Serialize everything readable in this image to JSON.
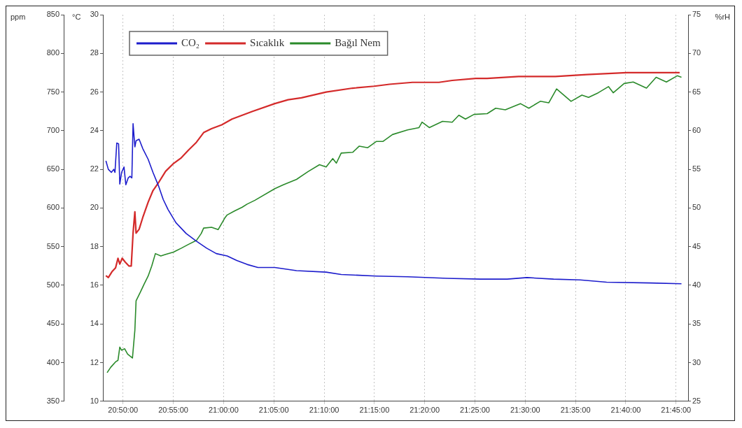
{
  "chart_data": {
    "type": "line",
    "ylabel": "ppm",
    "y2label": "°C",
    "y3label": "%rH",
    "xlim": [
      20.8,
      21.77
    ],
    "xticks": [
      {
        "value": 20.8333,
        "label": "20:50:00"
      },
      {
        "value": 20.9167,
        "label": "20:55:00"
      },
      {
        "value": 21,
        "label": "21:00:00"
      },
      {
        "value": 21.0833,
        "label": "21:05:00"
      },
      {
        "value": 21.1667,
        "label": "21:10:00"
      },
      {
        "value": 21.25,
        "label": "21:15:00"
      },
      {
        "value": 21.3333,
        "label": "21:20:00"
      },
      {
        "value": 21.4167,
        "label": "21:25:00"
      },
      {
        "value": 21.5,
        "label": "21:30:00"
      },
      {
        "value": 21.5833,
        "label": "21:35:00"
      },
      {
        "value": 21.6667,
        "label": "21:40:00"
      },
      {
        "value": 21.75,
        "label": "21:45:00"
      }
    ],
    "ylim": [
      350,
      850
    ],
    "yticks": [
      350,
      400,
      450,
      500,
      550,
      600,
      650,
      700,
      750,
      800,
      850
    ],
    "y2lim": [
      10,
      30
    ],
    "y2ticks": [
      10,
      12,
      14,
      16,
      18,
      20,
      22,
      24,
      26,
      28,
      30
    ],
    "y3lim": [
      25,
      75
    ],
    "y3ticks": [
      25,
      30,
      35,
      40,
      45,
      50,
      55,
      60,
      65,
      70,
      75
    ],
    "grid": "x",
    "legend": "top left",
    "marker": "none",
    "series": [
      {
        "name": "CO₂",
        "color": "#1c1ccc",
        "axis": "y",
        "x": [
          20.805,
          20.809,
          20.814,
          20.818,
          20.82,
          20.823,
          20.826,
          20.828,
          20.831,
          20.835,
          20.838,
          20.842,
          20.845,
          20.848,
          20.85,
          20.853,
          20.855,
          20.86,
          20.866,
          20.875,
          20.883,
          20.892,
          20.9,
          20.908,
          20.921,
          20.938,
          20.955,
          20.972,
          20.988,
          21.006,
          21.022,
          21.039,
          21.057,
          21.085,
          21.121,
          21.17,
          21.195,
          21.253,
          21.305,
          21.371,
          21.426,
          21.47,
          21.503,
          21.547,
          21.591,
          21.635,
          21.708,
          21.759
        ],
        "values": [
          661,
          650,
          646,
          650,
          646,
          684,
          683,
          631,
          646,
          653,
          630,
          639,
          641,
          639,
          709,
          679,
          687,
          689,
          677,
          663,
          646,
          629,
          611,
          598,
          581,
          567,
          557,
          548,
          541,
          538,
          532,
          527,
          523,
          523,
          519,
          517,
          514,
          512,
          511,
          509,
          508,
          508,
          510,
          508,
          507,
          504,
          503,
          502
        ]
      },
      {
        "name": "Sıcaklık",
        "color": "#d42a2a",
        "axis": "y2",
        "x": [
          20.805,
          20.809,
          20.815,
          20.821,
          20.825,
          20.828,
          20.832,
          20.837,
          20.843,
          20.847,
          20.85,
          20.853,
          20.855,
          20.86,
          20.866,
          20.875,
          20.883,
          20.892,
          20.904,
          20.917,
          20.93,
          20.942,
          20.955,
          20.967,
          20.98,
          20.997,
          21.014,
          21.031,
          21.048,
          21.085,
          21.107,
          21.129,
          21.17,
          21.214,
          21.25,
          21.275,
          21.313,
          21.357,
          21.379,
          21.418,
          21.437,
          21.489,
          21.55,
          21.602,
          21.668,
          21.756
        ],
        "values": [
          16.5,
          16.4,
          16.7,
          16.9,
          17.4,
          17.1,
          17.4,
          17.2,
          17.0,
          17.0,
          18.7,
          19.8,
          18.7,
          18.9,
          19.5,
          20.3,
          20.9,
          21.3,
          21.9,
          22.3,
          22.6,
          23.0,
          23.4,
          23.9,
          24.1,
          24.3,
          24.6,
          24.8,
          25.0,
          25.4,
          25.6,
          25.7,
          26.0,
          26.2,
          26.3,
          26.4,
          26.5,
          26.5,
          26.6,
          26.7,
          26.7,
          26.8,
          26.8,
          26.9,
          27.0,
          27.0
        ]
      },
      {
        "name": "Bağıl Nem",
        "color": "#2a8a2a",
        "axis": "y3",
        "x": [
          20.807,
          20.813,
          20.821,
          20.825,
          20.828,
          20.831,
          20.836,
          20.841,
          20.849,
          20.853,
          20.855,
          20.862,
          20.868,
          20.875,
          20.881,
          20.887,
          20.896,
          20.904,
          20.917,
          20.93,
          20.942,
          20.955,
          20.963,
          20.967,
          20.98,
          20.991,
          21.002,
          21.006,
          21.018,
          21.031,
          21.039,
          21.052,
          21.085,
          21.099,
          21.121,
          21.14,
          21.159,
          21.17,
          21.181,
          21.187,
          21.195,
          21.214,
          21.225,
          21.239,
          21.253,
          21.264,
          21.28,
          21.305,
          21.324,
          21.329,
          21.341,
          21.363,
          21.379,
          21.39,
          21.401,
          21.415,
          21.437,
          21.451,
          21.467,
          21.492,
          21.506,
          21.525,
          21.539,
          21.552,
          21.576,
          21.594,
          21.605,
          21.621,
          21.638,
          21.646,
          21.664,
          21.679,
          21.701,
          21.717,
          21.734,
          21.752,
          21.759
        ],
        "values": [
          28.7,
          29.4,
          30.1,
          30.3,
          32.0,
          31.6,
          31.8,
          31.1,
          30.6,
          34.2,
          38.0,
          39.1,
          40.1,
          41.2,
          42.5,
          44.1,
          43.8,
          44.0,
          44.3,
          44.8,
          45.3,
          45.8,
          46.7,
          47.4,
          47.5,
          47.2,
          48.7,
          49.1,
          49.6,
          50.1,
          50.5,
          51.0,
          52.5,
          53.0,
          53.7,
          54.7,
          55.6,
          55.3,
          56.4,
          55.8,
          57.1,
          57.2,
          58.0,
          57.8,
          58.6,
          58.6,
          59.5,
          60.1,
          60.4,
          61.1,
          60.4,
          61.2,
          61.1,
          62.0,
          61.5,
          62.1,
          62.2,
          62.9,
          62.7,
          63.5,
          62.9,
          63.8,
          63.6,
          65.4,
          63.8,
          64.6,
          64.3,
          64.9,
          65.7,
          64.9,
          66.1,
          66.3,
          65.5,
          66.9,
          66.3,
          67.1,
          66.9
        ]
      }
    ]
  }
}
